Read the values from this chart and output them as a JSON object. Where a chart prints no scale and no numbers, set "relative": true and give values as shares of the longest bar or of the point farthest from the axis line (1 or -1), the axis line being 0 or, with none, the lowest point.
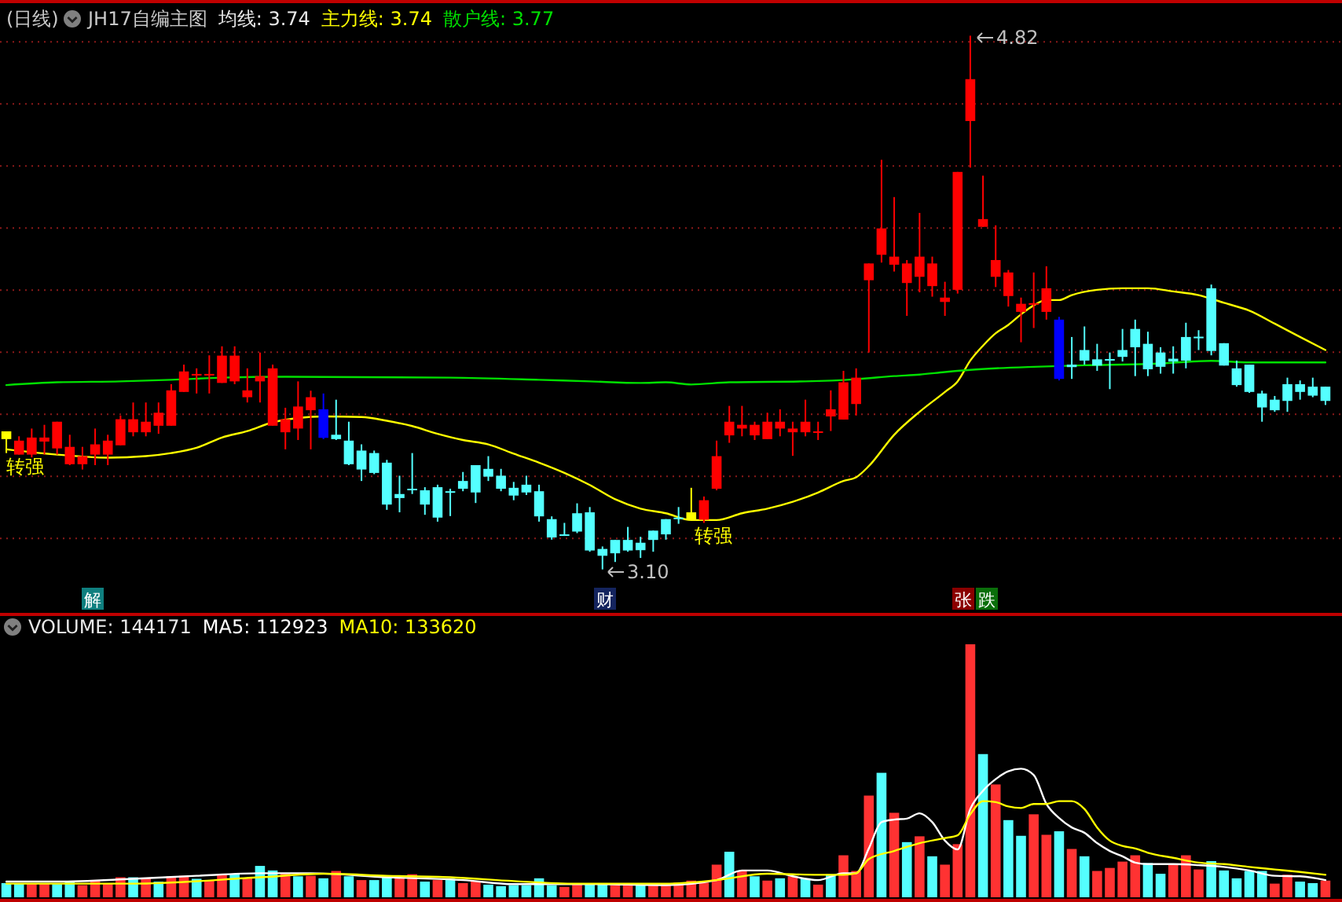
{
  "chart_data": [
    {
      "type": "candlestick",
      "subtitle": "(日线)",
      "title": "JH17自编主图",
      "categories": [
        null,
        null,
        null,
        null,
        null,
        null,
        null,
        null,
        null,
        null,
        null,
        null,
        null,
        null,
        null,
        null,
        null,
        null,
        null,
        null,
        null,
        null,
        null,
        null,
        null,
        null,
        null,
        null,
        null,
        null,
        null,
        null,
        null,
        null,
        null,
        null,
        null,
        null,
        null,
        null,
        null,
        null,
        null,
        null,
        null,
        null,
        null,
        null,
        null,
        null,
        null,
        null,
        null,
        null,
        null,
        null,
        null,
        null,
        null,
        null,
        null,
        null,
        null,
        null,
        null,
        null,
        null,
        null,
        null,
        null,
        null,
        null,
        null,
        null,
        null,
        null,
        null,
        null,
        null,
        null,
        null,
        null,
        null,
        null,
        null,
        null,
        null,
        null,
        null,
        null,
        null,
        null,
        null,
        null,
        null,
        null,
        null,
        null,
        null,
        null,
        null,
        null,
        null,
        null,
        null
      ],
      "ohlc": [
        [
          3.52,
          3.545,
          3.475,
          3.545
        ],
        [
          3.47,
          3.529,
          3.47,
          3.515
        ],
        [
          3.47,
          3.554,
          3.461,
          3.525
        ],
        [
          3.512,
          3.566,
          3.47,
          3.525
        ],
        [
          3.49,
          3.576,
          3.47,
          3.576
        ],
        [
          3.439,
          3.534,
          3.436,
          3.495
        ],
        [
          3.439,
          3.495,
          3.422,
          3.465
        ],
        [
          3.47,
          3.554,
          3.436,
          3.503
        ],
        [
          3.47,
          3.534,
          3.436,
          3.515
        ],
        [
          3.5,
          3.596,
          3.5,
          3.584
        ],
        [
          3.542,
          3.638,
          3.529,
          3.584
        ],
        [
          3.542,
          3.638,
          3.529,
          3.576
        ],
        [
          3.563,
          3.638,
          3.537,
          3.605
        ],
        [
          3.563,
          3.697,
          3.563,
          3.677
        ],
        [
          3.672,
          3.76,
          3.672,
          3.738
        ],
        [
          3.726,
          3.748,
          3.667,
          3.73
        ],
        [
          3.726,
          3.79,
          3.667,
          3.73
        ],
        [
          3.701,
          3.819,
          3.701,
          3.789
        ],
        [
          3.706,
          3.819,
          3.697,
          3.789
        ],
        [
          3.655,
          3.748,
          3.638,
          3.677
        ],
        [
          3.706,
          3.799,
          3.638,
          3.723
        ],
        [
          3.563,
          3.76,
          3.563,
          3.748
        ],
        [
          3.542,
          3.621,
          3.487,
          3.584
        ],
        [
          3.554,
          3.706,
          3.517,
          3.625
        ],
        [
          3.613,
          3.676,
          3.487,
          3.655
        ],
        [
          3.616,
          3.667,
          3.52,
          3.524
        ],
        [
          3.534,
          3.647,
          3.517,
          3.52
        ],
        [
          3.515,
          3.576,
          3.436,
          3.439
        ],
        [
          3.483,
          3.503,
          3.385,
          3.422
        ],
        [
          3.475,
          3.483,
          3.407,
          3.411
        ],
        [
          3.444,
          3.453,
          3.292,
          3.309
        ],
        [
          3.343,
          3.402,
          3.284,
          3.33
        ],
        [
          3.36,
          3.475,
          3.343,
          3.358
        ],
        [
          3.355,
          3.365,
          3.276,
          3.309
        ],
        [
          3.365,
          3.373,
          3.254,
          3.267
        ],
        [
          3.352,
          3.36,
          3.272,
          3.35
        ],
        [
          3.385,
          3.414,
          3.352,
          3.36
        ],
        [
          3.436,
          3.436,
          3.314,
          3.348
        ],
        [
          3.424,
          3.465,
          3.385,
          3.399
        ],
        [
          3.402,
          3.424,
          3.352,
          3.36
        ],
        [
          3.363,
          3.382,
          3.323,
          3.338
        ],
        [
          3.373,
          3.402,
          3.34,
          3.348
        ],
        [
          3.352,
          3.373,
          3.254,
          3.271
        ],
        [
          3.262,
          3.271,
          3.196,
          3.203
        ],
        [
          3.213,
          3.25,
          3.208,
          3.211
        ],
        [
          3.281,
          3.313,
          3.217,
          3.222
        ],
        [
          3.284,
          3.301,
          3.157,
          3.161
        ],
        [
          3.166,
          3.174,
          3.1,
          3.144
        ],
        [
          3.195,
          3.195,
          3.124,
          3.152
        ],
        [
          3.195,
          3.237,
          3.157,
          3.161
        ],
        [
          3.186,
          3.205,
          3.137,
          3.162
        ],
        [
          3.225,
          3.225,
          3.157,
          3.195
        ],
        [
          3.262,
          3.262,
          3.196,
          3.213
        ],
        [
          3.267,
          3.301,
          3.247,
          3.262
        ],
        [
          3.26,
          3.363,
          3.26,
          3.284
        ],
        [
          3.26,
          3.335,
          3.25,
          3.323
        ],
        [
          3.36,
          3.515,
          3.355,
          3.465
        ],
        [
          3.532,
          3.627,
          3.508,
          3.576
        ],
        [
          3.554,
          3.627,
          3.529,
          3.566
        ],
        [
          3.532,
          3.576,
          3.517,
          3.566
        ],
        [
          3.52,
          3.605,
          3.52,
          3.576
        ],
        [
          3.554,
          3.616,
          3.529,
          3.576
        ],
        [
          3.542,
          3.576,
          3.466,
          3.554
        ],
        [
          3.542,
          3.647,
          3.529,
          3.576
        ],
        [
          3.542,
          3.576,
          3.517,
          3.545
        ],
        [
          3.593,
          3.677,
          3.546,
          3.616
        ],
        [
          3.583,
          3.74,
          3.583,
          3.703
        ],
        [
          3.633,
          3.748,
          3.596,
          3.718
        ],
        [
          4.032,
          4.086,
          3.799,
          4.086
        ],
        [
          4.114,
          4.42,
          4.089,
          4.199
        ],
        [
          4.082,
          4.3,
          4.06,
          4.108
        ],
        [
          4.023,
          4.097,
          3.917,
          4.086
        ],
        [
          4.043,
          4.249,
          3.993,
          4.108
        ],
        [
          4.013,
          4.108,
          3.979,
          4.086
        ],
        [
          3.962,
          4.027,
          3.917,
          3.976
        ],
        [
          4.001,
          4.381,
          3.989,
          4.381
        ],
        [
          4.545,
          4.82,
          4.395,
          4.68
        ],
        [
          4.204,
          4.369,
          4.204,
          4.229
        ],
        [
          4.043,
          4.209,
          4.01,
          4.097
        ],
        [
          3.981,
          4.065,
          3.947,
          4.057
        ],
        [
          3.93,
          3.976,
          3.832,
          3.956
        ],
        [
          3.956,
          4.057,
          3.878,
          3.958
        ],
        [
          3.93,
          4.077,
          3.905,
          4.006
        ],
        [
          3.905,
          3.914,
          3.709,
          3.714
        ],
        [
          3.76,
          3.849,
          3.714,
          3.752
        ],
        [
          3.807,
          3.883,
          3.76,
          3.773
        ],
        [
          3.777,
          3.827,
          3.74,
          3.757
        ],
        [
          3.778,
          3.799,
          3.681,
          3.776
        ],
        [
          3.807,
          3.875,
          3.77,
          3.785
        ],
        [
          3.875,
          3.905,
          3.723,
          3.816
        ],
        [
          3.827,
          3.866,
          3.723,
          3.745
        ],
        [
          3.799,
          3.816,
          3.731,
          3.753
        ],
        [
          3.779,
          3.819,
          3.731,
          3.77
        ],
        [
          3.849,
          3.895,
          3.748,
          3.773
        ],
        [
          3.85,
          3.871,
          3.807,
          3.848
        ],
        [
          4.006,
          4.018,
          3.79,
          3.804
        ],
        [
          3.829,
          3.829,
          3.757,
          3.757
        ],
        [
          3.748,
          3.773,
          3.689,
          3.694
        ],
        [
          3.76,
          3.76,
          3.669,
          3.672
        ],
        [
          3.667,
          3.676,
          3.576,
          3.622
        ],
        [
          3.647,
          3.659,
          3.608,
          3.613
        ],
        [
          3.697,
          3.718,
          3.608,
          3.643
        ],
        [
          3.697,
          3.709,
          3.647,
          3.672
        ],
        [
          3.689,
          3.718,
          3.655,
          3.66
        ],
        [
          3.689,
          3.689,
          3.63,
          3.643
        ]
      ],
      "colors": [
        "#ffff00",
        "#ff0000",
        "#ff0000",
        "#ff0000",
        "#ff0000",
        "#ff0000",
        "#ff0000",
        "#ff0000",
        "#ff0000",
        "#ff0000",
        "#ff0000",
        "#ff0000",
        "#ff0000",
        "#ff0000",
        "#ff0000",
        "#ff0000",
        "#ff0000",
        "#ff0000",
        "#ff0000",
        "#ff0000",
        "#ff0000",
        "#ff0000",
        "#ff0000",
        "#ff0000",
        "#ff0000",
        "#0000ff",
        "#54ffff",
        "#54ffff",
        "#54ffff",
        "#54ffff",
        "#54ffff",
        "#54ffff",
        "#54ffff",
        "#54ffff",
        "#54ffff",
        "#54ffff",
        "#54ffff",
        "#54ffff",
        "#54ffff",
        "#54ffff",
        "#54ffff",
        "#54ffff",
        "#54ffff",
        "#54ffff",
        "#54ffff",
        "#54ffff",
        "#54ffff",
        "#54ffff",
        "#54ffff",
        "#54ffff",
        "#54ffff",
        "#54ffff",
        "#54ffff",
        "#54ffff",
        "#ffff00",
        "#ff0000",
        "#ff0000",
        "#ff0000",
        "#ff0000",
        "#ff0000",
        "#ff0000",
        "#ff0000",
        "#ff0000",
        "#ff0000",
        "#ff0000",
        "#ff0000",
        "#ff0000",
        "#ff0000",
        "#ff0000",
        "#ff0000",
        "#ff0000",
        "#ff0000",
        "#ff0000",
        "#ff0000",
        "#ff0000",
        "#ff0000",
        "#ff0000",
        "#ff0000",
        "#ff0000",
        "#ff0000",
        "#ff0000",
        "#ff0000",
        "#ff0000",
        "#0000ff",
        "#54ffff",
        "#54ffff",
        "#54ffff",
        "#54ffff",
        "#54ffff",
        "#54ffff",
        "#54ffff",
        "#54ffff",
        "#54ffff",
        "#54ffff",
        "#54ffff",
        "#54ffff",
        "#54ffff",
        "#54ffff",
        "#54ffff",
        "#54ffff",
        "#54ffff",
        "#54ffff",
        "#54ffff",
        "#54ffff",
        "#54ffff"
      ],
      "series": [
        {
          "type": "line",
          "color": "#ffff00",
          "values": [
            3.487,
            null,
            null,
            null,
            3.47,
            null,
            null,
            null,
            3.46,
            null,
            null,
            3.465,
            null,
            3.475,
            null,
            3.492,
            null,
            3.525,
            null,
            3.546,
            null,
            3.574,
            null,
            3.588,
            null,
            3.593,
            null,
            null,
            3.591,
            null,
            3.579,
            null,
            3.562,
            null,
            3.537,
            null,
            3.517,
            null,
            3.503,
            null,
            3.473,
            null,
            3.444,
            null,
            3.411,
            null,
            3.372,
            null,
            3.326,
            null,
            3.296,
            null,
            3.281,
            null,
            3.259,
            null,
            3.259,
            null,
            3.281,
            null,
            3.296,
            null,
            3.318,
            null,
            3.348,
            null,
            3.385,
            3.397,
            3.433,
            null,
            3.534,
            null,
            3.608,
            null,
            3.672,
            3.706,
            3.773,
            3.821,
            3.861,
            3.888,
            3.922,
            3.951,
            3.968,
            3.968,
            3.984,
            null,
            4.001,
            null,
            4.006,
            null,
            4.006,
            null,
            3.996,
            null,
            3.984,
            null,
            3.959,
            null,
            3.934,
            null,
            3.892,
            null,
            3.849,
            null,
            3.807
          ]
        },
        {
          "type": "line",
          "color": "#00e000",
          "values": [
            3.694,
            null,
            null,
            null,
            3.703,
            null,
            null,
            null,
            null,
            3.706,
            null,
            null,
            null,
            3.711,
            null,
            null,
            null,
            3.718,
            null,
            null,
            null,
            null,
            3.721,
            null,
            null,
            null,
            null,
            null,
            null,
            null,
            null,
            null,
            null,
            null,
            null,
            3.718,
            null,
            null,
            null,
            null,
            null,
            null,
            3.711,
            null,
            null,
            null,
            3.706,
            null,
            null,
            null,
            3.701,
            null,
            3.703,
            null,
            3.696,
            null,
            null,
            3.703,
            null,
            null,
            null,
            null,
            null,
            3.706,
            null,
            null,
            null,
            3.713,
            null,
            null,
            3.723,
            null,
            3.728,
            null,
            3.736,
            null,
            3.743,
            null,
            3.748,
            null,
            null,
            3.753,
            null,
            null,
            null,
            3.758,
            null,
            null,
            null,
            null,
            3.762,
            null,
            null,
            null,
            null,
            3.772,
            null,
            null,
            3.767,
            null,
            null,
            null,
            null,
            null,
            3.767
          ]
        }
      ],
      "ylim": [
        2.96,
        4.93
      ],
      "yticks": [
        {
          "value": 3.2,
          "label": null
        },
        {
          "value": 3.4,
          "label": null
        },
        {
          "value": 3.6,
          "label": null
        },
        {
          "value": 3.8,
          "label": null
        },
        {
          "value": 4.0,
          "label": null
        },
        {
          "value": 4.2,
          "label": null
        },
        {
          "value": 4.4,
          "label": null
        },
        {
          "value": 4.6,
          "label": null
        },
        {
          "value": 4.8,
          "label": null
        }
      ],
      "grid": "y",
      "annotations": [
        "均线: 3.74",
        "主力线: 3.74",
        "散户线: 3.77",
        "转强",
        "转强",
        "4.82",
        "3.10",
        "解",
        "财",
        "张",
        "跌"
      ]
    },
    {
      "type": "bar",
      "relative": true,
      "categories": [
        null,
        null,
        null,
        null,
        null,
        null,
        null,
        null,
        null,
        null,
        null,
        null,
        null,
        null,
        null,
        null,
        null,
        null,
        null,
        null,
        null,
        null,
        null,
        null,
        null,
        null,
        null,
        null,
        null,
        null,
        null,
        null,
        null,
        null,
        null,
        null,
        null,
        null,
        null,
        null,
        null,
        null,
        null,
        null,
        null,
        null,
        null,
        null,
        null,
        null,
        null,
        null,
        null,
        null,
        null,
        null,
        null,
        null,
        null,
        null,
        null,
        null,
        null,
        null,
        null,
        null,
        null,
        null,
        null,
        null,
        null,
        null,
        null,
        null,
        null,
        null,
        null,
        null,
        null,
        null,
        null,
        null,
        null,
        null,
        null,
        null,
        null,
        null,
        null,
        null,
        null,
        null,
        null,
        null,
        null,
        null,
        null,
        null,
        null,
        null,
        null,
        null,
        null,
        null,
        null
      ],
      "series": [
        {
          "type": "bar",
          "values": [
            0.056,
            0.054,
            0.054,
            0.054,
            0.052,
            0.062,
            0.048,
            0.066,
            0.054,
            0.079,
            0.079,
            0.075,
            0.062,
            0.083,
            0.085,
            0.073,
            0.068,
            0.091,
            0.093,
            0.075,
            0.124,
            0.106,
            0.095,
            0.083,
            0.085,
            0.075,
            0.104,
            0.083,
            0.068,
            0.068,
            0.079,
            0.079,
            0.091,
            0.062,
            0.068,
            0.073,
            0.056,
            0.064,
            0.05,
            0.044,
            0.048,
            0.048,
            0.075,
            0.048,
            0.041,
            0.054,
            0.052,
            0.056,
            0.048,
            0.054,
            0.048,
            0.052,
            0.054,
            0.058,
            0.066,
            0.058,
            0.129,
            0.18,
            0.106,
            0.083,
            0.066,
            0.075,
            0.083,
            0.075,
            0.05,
            0.091,
            0.166,
            0.104,
            0.402,
            0.492,
            0.334,
            0.218,
            0.241,
            0.162,
            0.129,
            0.21,
            1,
            0.566,
            0.446,
            0.305,
            0.243,
            0.328,
            0.247,
            0.261,
            0.191,
            0.162,
            0.104,
            0.116,
            0.141,
            0.166,
            0.135,
            0.093,
            0.129,
            0.166,
            0.11,
            0.143,
            0.106,
            0.075,
            0.104,
            0.104,
            0.054,
            0.089,
            0.062,
            0.056,
            0.066
          ],
          "colors": [
            "#54ffff",
            "#54ffff",
            "#ff3232",
            "#ff3232",
            "#54ffff",
            "#54ffff",
            "#ff3232",
            "#ff3232",
            "#ff3232",
            "#ff3232",
            "#54ffff",
            "#ff3232",
            "#54ffff",
            "#ff3232",
            "#ff3232",
            "#54ffff",
            "#ff3232",
            "#ff3232",
            "#54ffff",
            "#ff3232",
            "#54ffff",
            "#54ffff",
            "#ff3232",
            "#54ffff",
            "#ff3232",
            "#54ffff",
            "#ff3232",
            "#54ffff",
            "#ff3232",
            "#54ffff",
            "#54ffff",
            "#ff3232",
            "#ff3232",
            "#54ffff",
            "#ff3232",
            "#54ffff",
            "#ff3232",
            "#ff3232",
            "#54ffff",
            "#54ffff",
            "#54ffff",
            "#54ffff",
            "#54ffff",
            "#54ffff",
            "#ff3232",
            "#ff3232",
            "#54ffff",
            "#54ffff",
            "#ff3232",
            "#ff3232",
            "#54ffff",
            "#ff3232",
            "#ff3232",
            "#ff3232",
            "#ff3232",
            "#ff3232",
            "#ff3232",
            "#54ffff",
            "#ff3232",
            "#54ffff",
            "#ff3232",
            "#54ffff",
            "#ff3232",
            "#54ffff",
            "#ff3232",
            "#54ffff",
            "#ff3232",
            "#ff3232",
            "#ff3232",
            "#54ffff",
            "#ff3232",
            "#54ffff",
            "#ff3232",
            "#54ffff",
            "#ff3232",
            "#ff3232",
            "#ff3232",
            "#54ffff",
            "#ff3232",
            "#54ffff",
            "#54ffff",
            "#ff3232",
            "#ff3232",
            "#54ffff",
            "#ff3232",
            "#54ffff",
            "#ff3232",
            "#ff3232",
            "#ff3232",
            "#ff3232",
            "#54ffff",
            "#54ffff",
            "#ff3232",
            "#ff3232",
            "#ff3232",
            "#54ffff",
            "#54ffff",
            "#54ffff",
            "#54ffff",
            "#54ffff",
            "#ff3232",
            "#ff3232",
            "#54ffff",
            "#54ffff",
            "#ff3232"
          ]
        },
        {
          "type": "line",
          "color": "#ffffff",
          "values": [
            0.062,
            null,
            null,
            null,
            0.062,
            null,
            null,
            null,
            null,
            null,
            0.073,
            null,
            null,
            null,
            null,
            0.085,
            null,
            null,
            null,
            null,
            0.095,
            null,
            null,
            null,
            0.095,
            null,
            null,
            null,
            null,
            null,
            0.079,
            null,
            null,
            null,
            null,
            null,
            0.068,
            null,
            null,
            null,
            0.052,
            null,
            null,
            null,
            null,
            null,
            0.052,
            null,
            null,
            null,
            null,
            null,
            0.048,
            null,
            null,
            null,
            0.068,
            null,
            0.106,
            null,
            0.106,
            null,
            0.083,
            null,
            0.068,
            null,
            0.095,
            0.095,
            0.193,
            0.297,
            0.307,
            0.311,
            0.332,
            0.297,
            0.224,
            0.189,
            0.349,
            0.421,
            0.467,
            0.498,
            0.508,
            0.483,
            0.369,
            0.313,
            0.276,
            0.255,
            0.214,
            0.183,
            0.162,
            0.137,
            0.131,
            null,
            0.131,
            null,
            0.127,
            null,
            0.12,
            null,
            0.106,
            null,
            0.085,
            null,
            0.083,
            null,
            0.068
          ]
        },
        {
          "type": "line",
          "color": "#ffff00",
          "values": [
            0.054,
            null,
            null,
            null,
            null,
            null,
            null,
            null,
            null,
            null,
            0.054,
            null,
            null,
            null,
            null,
            null,
            null,
            null,
            null,
            null,
            0.079,
            null,
            null,
            null,
            null,
            0.093,
            null,
            null,
            null,
            null,
            0.085,
            null,
            null,
            null,
            null,
            0.079,
            null,
            null,
            null,
            null,
            0.064,
            null,
            null,
            null,
            null,
            0.054,
            null,
            null,
            null,
            null,
            null,
            null,
            0.054,
            null,
            null,
            null,
            0.068,
            null,
            null,
            null,
            0.093,
            null,
            null,
            null,
            0.089,
            null,
            0.089,
            0.095,
            0.151,
            null,
            0.183,
            null,
            0.214,
            null,
            0.234,
            0.245,
            0.328,
            0.38,
            0.376,
            0.359,
            0.353,
            0.369,
            0.369,
            0.38,
            0.38,
            0.349,
            0.276,
            0.224,
            0.203,
            0.193,
            0.176,
            null,
            0.156,
            null,
            0.137,
            null,
            0.131,
            null,
            0.12,
            null,
            0.11,
            null,
            0.1,
            null,
            0.089
          ]
        }
      ],
      "annotations": [
        "VOLUME: 144171",
        "MA5: 112923",
        "MA10: 133620"
      ]
    }
  ]
}
